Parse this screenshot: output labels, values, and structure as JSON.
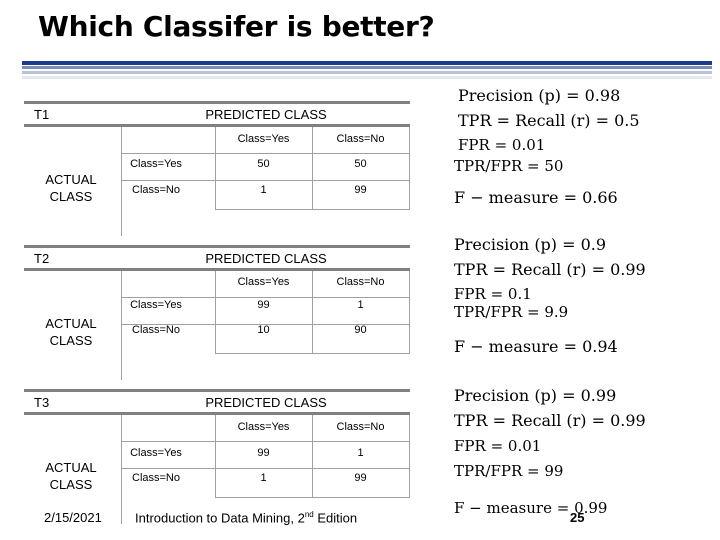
{
  "title": "Which Classifer is better?",
  "matrices": [
    {
      "label": "T1",
      "predicted_header": "PREDICTED CLASS",
      "actual_label_line1": "ACTUAL",
      "actual_label_line2": "CLASS",
      "col_yes": "Class=Yes",
      "col_no": "Class=No",
      "row_yes": "Class=Yes",
      "row_no": "Class=No",
      "tp": "50",
      "fn": "50",
      "fp": "1",
      "tn": "99"
    },
    {
      "label": "T2",
      "predicted_header": "PREDICTED CLASS",
      "actual_label_line1": "ACTUAL",
      "actual_label_line2": "CLASS",
      "col_yes": "Class=Yes",
      "col_no": "Class=No",
      "row_yes": "Class=Yes",
      "row_no": "Class=No",
      "tp": "99",
      "fn": "1",
      "fp": "10",
      "tn": "90"
    },
    {
      "label": "T3",
      "predicted_header": "PREDICTED CLASS",
      "actual_label_line1": "ACTUAL",
      "actual_label_line2": "CLASS",
      "col_yes": "Class=Yes",
      "col_no": "Class=No",
      "row_yes": "Class=Yes",
      "row_no": "Class=No",
      "tp": "99",
      "fn": "1",
      "fp": "1",
      "tn": "99"
    }
  ],
  "metrics": [
    {
      "precision": "Precision (p) = 0.98",
      "recall": "TPR = Recall (r) = 0.5",
      "fpr": "FPR = 0.01",
      "ratio": "TPR/FPR = 50",
      "fmeasure": "F − measure = 0.66"
    },
    {
      "precision": "Precision (p) = 0.9",
      "recall": "TPR = Recall (r) = 0.99",
      "fpr": "FPR = 0.1",
      "ratio": "TPR/FPR = 9.9",
      "fmeasure": "F − measure = 0.94"
    },
    {
      "precision": "Precision (p) = 0.99",
      "recall": "TPR = Recall (r) = 0.99",
      "fpr": "FPR = 0.01",
      "ratio": "TPR/FPR = 99",
      "fmeasure": "F − measure = 0.99"
    }
  ],
  "footer": {
    "date": "2/15/2021",
    "title": "Introduction to Data Mining, 2",
    "title_sup": "nd",
    "title_end": " Edition",
    "page": "25"
  }
}
